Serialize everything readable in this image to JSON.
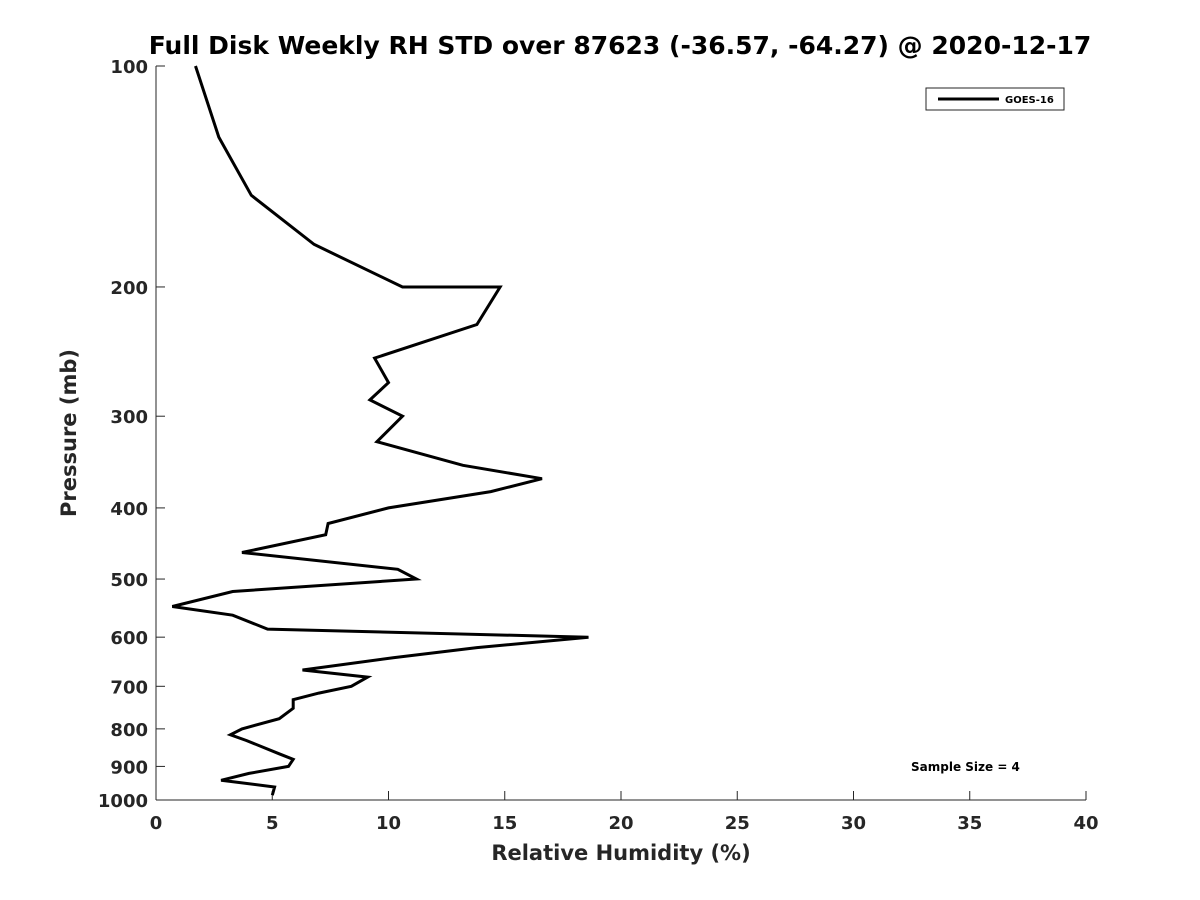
{
  "chart_data": {
    "type": "line",
    "title": "Full Disk Weekly RH STD over 87623 (-36.57, -64.27) @ 2020-12-17",
    "xlabel": "Relative Humidity (%)",
    "ylabel": "Pressure (mb)",
    "xlim": [
      0,
      40
    ],
    "ylim": [
      100,
      1000
    ],
    "y_scale": "log",
    "y_direction": "reversed",
    "grid": false,
    "x_ticks": [
      "0",
      "5",
      "10",
      "15",
      "20",
      "25",
      "30",
      "35",
      "40"
    ],
    "y_ticks": [
      "100",
      "200",
      "300",
      "400",
      "500",
      "600",
      "700",
      "800",
      "900",
      "1000"
    ],
    "legend": {
      "position": "top-right",
      "entries": [
        "GOES-16"
      ]
    },
    "annotation": "Sample Size = 4",
    "series": [
      {
        "name": "GOES-16",
        "color": "#000000",
        "points": [
          [
            1.7,
            100
          ],
          [
            2.7,
            125
          ],
          [
            4.1,
            150
          ],
          [
            6.8,
            175
          ],
          [
            10.6,
            200
          ],
          [
            14.8,
            200
          ],
          [
            13.8,
            225
          ],
          [
            9.4,
            250
          ],
          [
            10.0,
            270
          ],
          [
            9.2,
            285
          ],
          [
            10.6,
            300
          ],
          [
            9.5,
            325
          ],
          [
            13.2,
            350
          ],
          [
            16.6,
            365
          ],
          [
            14.4,
            380
          ],
          [
            10.0,
            400
          ],
          [
            7.4,
            420
          ],
          [
            7.3,
            435
          ],
          [
            3.7,
            460
          ],
          [
            10.4,
            485
          ],
          [
            11.2,
            500
          ],
          [
            3.3,
            520
          ],
          [
            0.7,
            545
          ],
          [
            3.3,
            560
          ],
          [
            4.8,
            585
          ],
          [
            18.6,
            600
          ],
          [
            13.8,
            620
          ],
          [
            10.2,
            640
          ],
          [
            6.3,
            665
          ],
          [
            9.1,
            680
          ],
          [
            8.4,
            700
          ],
          [
            7.0,
            715
          ],
          [
            5.9,
            730
          ],
          [
            5.9,
            750
          ],
          [
            5.3,
            775
          ],
          [
            3.7,
            800
          ],
          [
            3.2,
            815
          ],
          [
            3.9,
            830
          ],
          [
            5.3,
            865
          ],
          [
            5.9,
            880
          ],
          [
            5.7,
            900
          ],
          [
            4.0,
            920
          ],
          [
            2.8,
            940
          ],
          [
            5.1,
            960
          ],
          [
            5.0,
            985
          ]
        ]
      }
    ]
  }
}
